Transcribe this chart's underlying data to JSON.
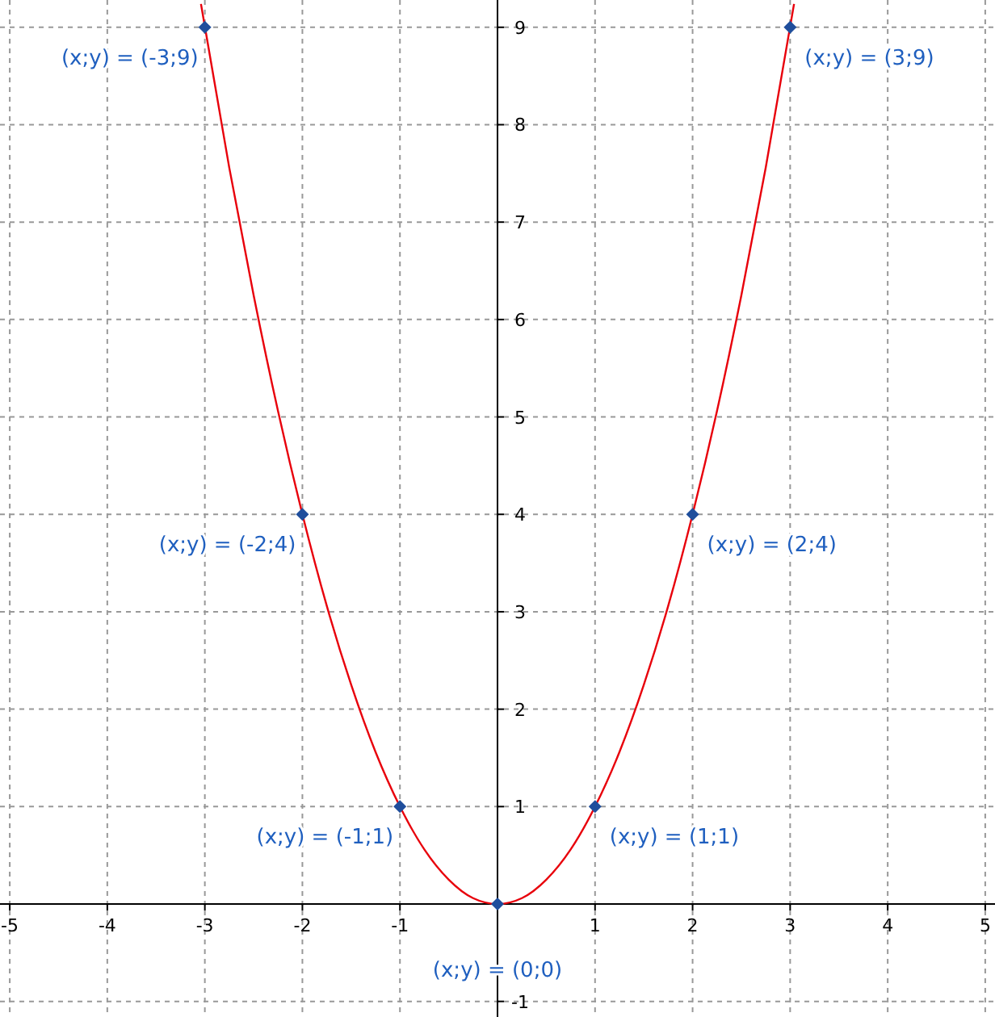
{
  "chart_data": {
    "type": "line",
    "xlim": [
      -5.1,
      5.1
    ],
    "ylim": [
      -1.16,
      9.28
    ],
    "xticks": [
      -5,
      -4,
      -3,
      -2,
      -1,
      1,
      2,
      3,
      4,
      5
    ],
    "yticks": [
      -1,
      1,
      2,
      3,
      4,
      5,
      6,
      7,
      8,
      9
    ],
    "grid": true,
    "series": [
      {
        "color": "#e8000b",
        "marker": "none",
        "x": [
          -3.04,
          -2.75,
          -2.5,
          -2.25,
          -2,
          -1.75,
          -1.5,
          -1.25,
          -1,
          -0.75,
          -0.5,
          -0.25,
          0,
          0.25,
          0.5,
          0.75,
          1,
          1.25,
          1.5,
          1.75,
          2,
          2.25,
          2.5,
          2.75,
          3.04
        ],
        "values": [
          9.24,
          7.56,
          6.25,
          5.06,
          4,
          3.06,
          2.25,
          1.56,
          1,
          0.56,
          0.25,
          0.06,
          0,
          0.06,
          0.25,
          0.56,
          1,
          1.56,
          2.25,
          3.06,
          4,
          5.06,
          6.25,
          7.56,
          9.24
        ]
      },
      {
        "type": "scatter",
        "color": "#1f4e9c",
        "marker": "diamond",
        "x": [
          -3,
          -2,
          -1,
          0,
          1,
          2,
          3
        ],
        "values": [
          9,
          4,
          1,
          0,
          1,
          4,
          9
        ]
      }
    ],
    "annotations": [
      {
        "text": "(x;y) = (-3;9)",
        "x": -3,
        "y": 9
      },
      {
        "text": "(x;y) = (3;9)",
        "x": 3,
        "y": 9
      },
      {
        "text": "(x;y) = (-2;4)",
        "x": -2,
        "y": 4
      },
      {
        "text": "(x;y) = (2;4)",
        "x": 2,
        "y": 4
      },
      {
        "text": "(x;y) = (-1;1)",
        "x": -1,
        "y": 1
      },
      {
        "text": "(x;y) = (1;1)",
        "x": 1,
        "y": 1
      },
      {
        "text": "(x;y) = (0;0)",
        "x": 0,
        "y": 0
      }
    ]
  }
}
